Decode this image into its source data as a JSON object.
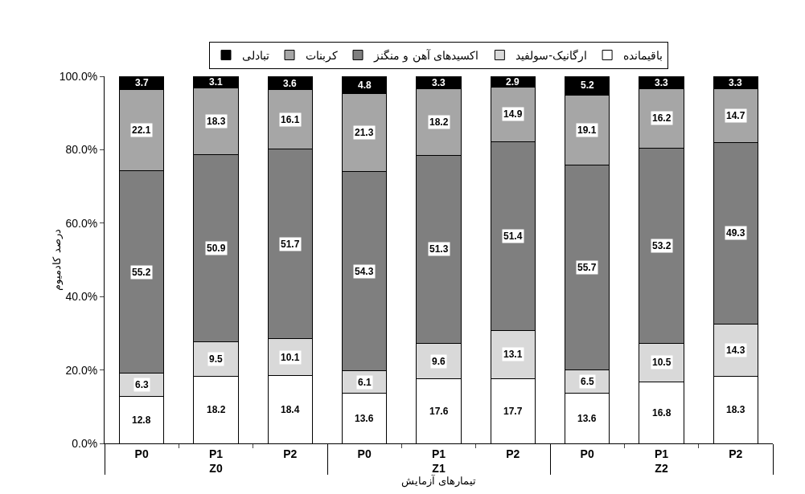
{
  "chart_data": {
    "type": "bar",
    "stacked": true,
    "xlabel": "تیمارهای آزمایش",
    "ylabel": "درصد کادمیوم",
    "categories": [
      "P0",
      "P1",
      "P2",
      "P0",
      "P1",
      "P2",
      "P0",
      "P1",
      "P2"
    ],
    "annotations": [
      "Z0",
      "Z1",
      "Z2"
    ],
    "series": [
      {
        "name": "باقیمانده",
        "color": "#ffffff",
        "values": [
          12.8,
          18.2,
          18.4,
          13.6,
          17.6,
          17.7,
          13.6,
          16.8,
          18.3
        ]
      },
      {
        "name": "ارگانیک-سولفید",
        "color": "#d9d9d9",
        "values": [
          6.3,
          9.5,
          10.1,
          6.1,
          9.6,
          13.1,
          6.5,
          10.5,
          14.3
        ]
      },
      {
        "name": "اکسیدهای آهن و منگنز",
        "color": "#7f7f7f",
        "values": [
          55.2,
          50.9,
          51.7,
          54.3,
          51.3,
          51.4,
          55.7,
          53.2,
          49.3
        ]
      },
      {
        "name": "کربنات",
        "color": "#a6a6a6",
        "values": [
          22.1,
          18.3,
          16.1,
          21.3,
          18.2,
          14.9,
          19.1,
          16.2,
          14.7
        ]
      },
      {
        "name": "تبادلی",
        "color": "#000000",
        "values": [
          3.7,
          3.1,
          3.6,
          4.8,
          3.3,
          2.9,
          5.2,
          3.3,
          3.3
        ]
      }
    ],
    "ylim": [
      0,
      100
    ],
    "yticks": [
      {
        "value": 0,
        "label": "0.0%"
      },
      {
        "value": 20,
        "label": "20.0%"
      },
      {
        "value": 40,
        "label": "40.0%"
      },
      {
        "value": 60,
        "label": "60.0%"
      },
      {
        "value": 80,
        "label": "80.0%"
      },
      {
        "value": 100,
        "label": "100.0%"
      }
    ],
    "grid": false,
    "legend": "top",
    "data_labels": true
  }
}
